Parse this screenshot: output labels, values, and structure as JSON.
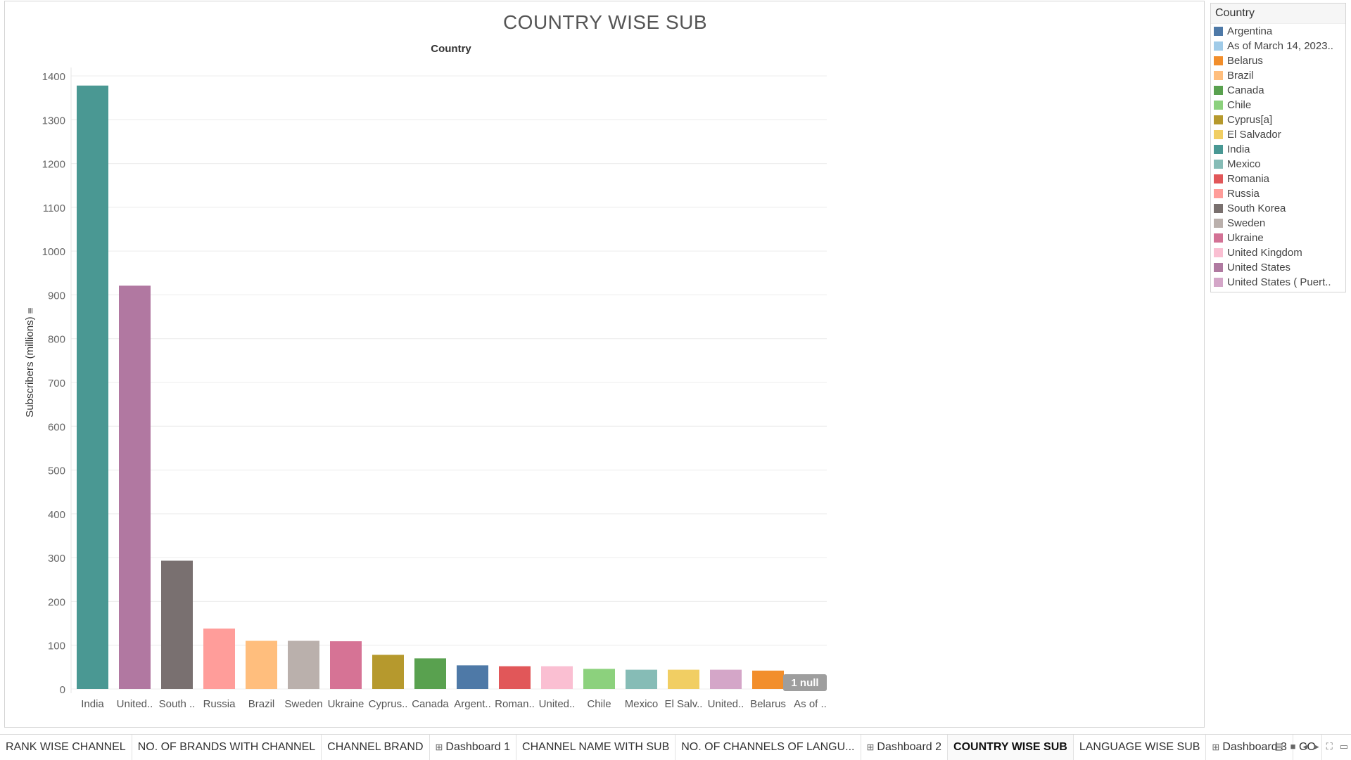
{
  "chart_data": {
    "type": "bar",
    "title": "COUNTRY WISE SUB",
    "xlabel": "Country",
    "ylabel": "Subscribers (millions)",
    "ylim": [
      0,
      1400
    ],
    "yticks": [
      0,
      100,
      200,
      300,
      400,
      500,
      600,
      700,
      800,
      900,
      1000,
      1100,
      1200,
      1300,
      1400
    ],
    "grid": true,
    "legend_position": "right",
    "categories": [
      "India",
      "United..",
      "South ..",
      "Russia",
      "Brazil",
      "Sweden",
      "Ukraine",
      "Cyprus..",
      "Canada",
      "Argent..",
      "Roman..",
      "United..",
      "Chile",
      "Mexico",
      "El Salv..",
      "United..",
      "Belarus",
      "As of .."
    ],
    "values": [
      1378,
      921,
      293,
      138,
      110,
      110,
      109,
      78,
      70,
      54,
      52,
      52,
      46,
      44,
      44,
      44,
      42,
      null
    ],
    "bar_colors": [
      "#4a9893",
      "#b178a1",
      "#797070",
      "#ff9d9a",
      "#ffbe7d",
      "#bab0ac",
      "#d67395",
      "#b6992d",
      "#59a14f",
      "#4e79a7",
      "#e15759",
      "#fabfd2",
      "#8cd17d",
      "#86bcb6",
      "#f1ce63",
      "#d4a6c8",
      "#f28e2b",
      "#a0cbe8"
    ],
    "null_indicator": "1 null"
  },
  "legend": {
    "title": "Country",
    "items": [
      {
        "label": "Argentina",
        "color": "#4e79a7"
      },
      {
        "label": "As of March 14, 2023..",
        "color": "#a0cbe8"
      },
      {
        "label": "Belarus",
        "color": "#f28e2b"
      },
      {
        "label": "Brazil",
        "color": "#ffbe7d"
      },
      {
        "label": "Canada",
        "color": "#59a14f"
      },
      {
        "label": "Chile",
        "color": "#8cd17d"
      },
      {
        "label": "Cyprus[a]",
        "color": "#b6992d"
      },
      {
        "label": "El Salvador",
        "color": "#f1ce63"
      },
      {
        "label": "India",
        "color": "#499894"
      },
      {
        "label": "Mexico",
        "color": "#86bcb6"
      },
      {
        "label": "Romania",
        "color": "#e15759"
      },
      {
        "label": "Russia",
        "color": "#ff9d9a"
      },
      {
        "label": "South Korea",
        "color": "#79706e"
      },
      {
        "label": "Sweden",
        "color": "#bab0ac"
      },
      {
        "label": "Ukraine",
        "color": "#d37295"
      },
      {
        "label": "United Kingdom",
        "color": "#fabfd2"
      },
      {
        "label": "United States",
        "color": "#b07aa1"
      },
      {
        "label": "United States ( Puert..",
        "color": "#d4a6c8"
      }
    ]
  },
  "tabs": [
    {
      "label": "RANK WISE CHANNEL",
      "dashboard": false,
      "active": false
    },
    {
      "label": "NO. OF BRANDS WITH CHANNEL",
      "dashboard": false,
      "active": false
    },
    {
      "label": "CHANNEL BRAND",
      "dashboard": false,
      "active": false
    },
    {
      "label": "Dashboard 1",
      "dashboard": true,
      "active": false
    },
    {
      "label": "CHANNEL NAME WITH SUB",
      "dashboard": false,
      "active": false
    },
    {
      "label": "NO. OF CHANNELS OF LANGU...",
      "dashboard": false,
      "active": false
    },
    {
      "label": "Dashboard 2",
      "dashboard": true,
      "active": false
    },
    {
      "label": "COUNTRY WISE SUB",
      "dashboard": false,
      "active": true
    },
    {
      "label": "LANGUAGE WISE SUB",
      "dashboard": false,
      "active": false
    },
    {
      "label": "Dashboard 3",
      "dashboard": true,
      "active": false
    },
    {
      "label": "CO",
      "dashboard": false,
      "active": false
    }
  ],
  "tab_controls": [
    "show-filmstrip-icon",
    "show-tabs-icon",
    "prev-sheet-icon",
    "next-sheet-icon",
    "fullscreen-icon",
    "presentation-icon"
  ]
}
